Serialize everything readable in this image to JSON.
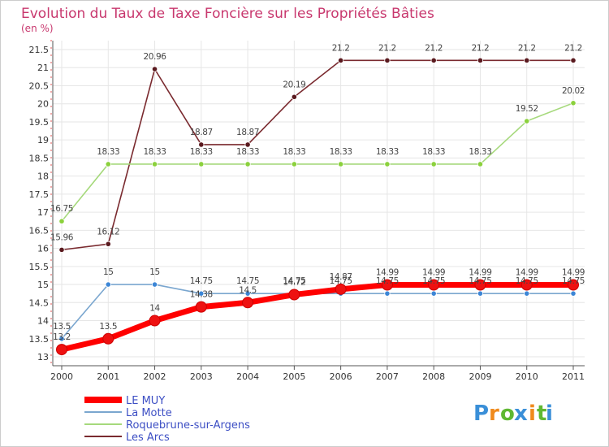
{
  "chart_data": {
    "type": "line",
    "title": "Evolution du Taux de Taxe Foncière sur les Propriétés Bâties",
    "subtitle": "(en %)",
    "xlabel": "",
    "ylabel": "",
    "x": [
      "2000",
      "2001",
      "2002",
      "2003",
      "2004",
      "2005",
      "2006",
      "2007",
      "2008",
      "2009",
      "2010",
      "2011"
    ],
    "ylim": [
      13,
      21.5
    ],
    "yticks": [
      "13",
      "13.5",
      "14",
      "14.5",
      "15",
      "15.5",
      "16",
      "16.5",
      "17",
      "17.5",
      "18",
      "18.5",
      "19",
      "19.5",
      "20",
      "20.5",
      "21",
      "21.5"
    ],
    "grid": true,
    "legend_position": "bottom-left",
    "series": [
      {
        "name": "LE MUY",
        "color": "#ff0000",
        "marker": "#ee1111",
        "values": [
          13.2,
          13.5,
          14,
          14.38,
          14.5,
          14.72,
          14.87,
          14.99,
          14.99,
          14.99,
          14.99,
          14.99
        ],
        "labels": [
          "13.2",
          "13.5",
          "14",
          "14.38",
          "14.5",
          "14.72",
          "14.87",
          "14.99",
          "14.99",
          "14.99",
          "14.99",
          "14.99"
        ]
      },
      {
        "name": "La Motte",
        "color": "#7aa6cf",
        "marker": "#3c86d6",
        "values": [
          13.5,
          15,
          15,
          14.75,
          14.75,
          14.75,
          14.75,
          14.75,
          14.75,
          14.75,
          14.75,
          14.75
        ],
        "labels": [
          "13.5",
          "15",
          "15",
          "14.75",
          "14.75",
          "14.75",
          "14.75",
          "14.75",
          "14.75",
          "14.75",
          "14.75",
          "14.75"
        ]
      },
      {
        "name": "Roquebrune-sur-Argens",
        "color": "#a6d97c",
        "marker": "#8bd13c",
        "values": [
          16.75,
          18.33,
          18.33,
          18.33,
          18.33,
          18.33,
          18.33,
          18.33,
          18.33,
          18.33,
          19.52,
          20.02
        ],
        "labels": [
          "16.75",
          "18.33",
          "18.33",
          "18.33",
          "18.33",
          "18.33",
          "18.33",
          "18.33",
          "18.33",
          "18.33",
          "19.52",
          "20.02"
        ]
      },
      {
        "name": "Les Arcs",
        "color": "#7a2a2f",
        "marker": "#5a1a1f",
        "values": [
          15.96,
          16.12,
          20.96,
          18.87,
          18.87,
          20.19,
          21.2,
          21.2,
          21.2,
          21.2,
          21.2,
          21.2
        ],
        "labels": [
          "15.96",
          "16.12",
          "20.96",
          "18.87",
          "18.87",
          "20.19",
          "21.2",
          "21.2",
          "21.2",
          "21.2",
          "21.2",
          "21.2"
        ]
      }
    ]
  },
  "logo": {
    "letters": [
      "P",
      "r",
      "o",
      "x",
      "i",
      "t",
      "i"
    ],
    "colors": [
      "#3a8fd8",
      "#f08a1c",
      "#5fb832",
      "#3a8fd8",
      "#f08a1c",
      "#5fb832",
      "#3a8fd8"
    ]
  }
}
